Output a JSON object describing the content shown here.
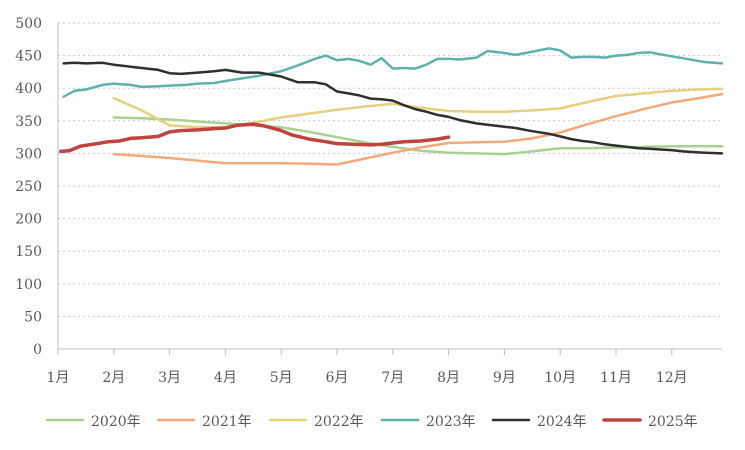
{
  "chart_data": {
    "type": "line",
    "title": "",
    "xlabel": "",
    "ylabel": "",
    "ylim": [
      0,
      500
    ],
    "y_ticks": [
      0,
      50,
      100,
      150,
      200,
      250,
      300,
      350,
      400,
      450,
      500
    ],
    "x_ticks": [
      "1月",
      "2月",
      "3月",
      "4月",
      "5月",
      "6月",
      "7月",
      "8月",
      "9月",
      "10月",
      "11月",
      "12月"
    ],
    "x_range": [
      1,
      12.9
    ],
    "grid": "horizontal-dotted",
    "legend": "bottom",
    "series": [
      {
        "name": "2020年",
        "color": "#a9d18e",
        "x": [
          2,
          2.5,
          3,
          3.5,
          4,
          4.5,
          5,
          5.5,
          6,
          6.5,
          7,
          7.5,
          8,
          8.5,
          9,
          9.5,
          10,
          10.5,
          11,
          11.5,
          12,
          12.5,
          12.9
        ],
        "values": [
          355,
          354,
          352,
          349,
          346,
          343,
          340,
          333,
          325,
          317,
          310,
          304,
          301,
          300,
          299,
          303,
          308,
          308,
          309,
          310,
          311,
          311,
          311
        ]
      },
      {
        "name": "2021年",
        "color": "#f4a97a",
        "x": [
          2,
          2.5,
          3,
          3.5,
          4,
          4.5,
          5,
          5.5,
          6,
          6.5,
          7,
          7.5,
          8,
          8.5,
          9,
          9.5,
          10,
          10.5,
          11,
          11.5,
          12,
          12.5,
          12.9
        ],
        "values": [
          299,
          296,
          293,
          289,
          285,
          285,
          285,
          284,
          283,
          292,
          301,
          309,
          316,
          317,
          318,
          323,
          332,
          345,
          357,
          368,
          378,
          385,
          391
        ]
      },
      {
        "name": "2022年",
        "color": "#e6cf7d",
        "x": [
          2,
          2.5,
          3,
          3.5,
          4,
          4.5,
          5,
          5.5,
          6,
          6.5,
          7,
          7.5,
          8,
          8.5,
          9,
          9.5,
          10,
          10.5,
          11,
          11.5,
          12,
          12.5,
          12.9
        ],
        "values": [
          385,
          366,
          343,
          340,
          340,
          347,
          355,
          361,
          367,
          372,
          376,
          370,
          365,
          364,
          364,
          366,
          369,
          379,
          388,
          392,
          396,
          398,
          399
        ]
      },
      {
        "name": "2023年",
        "color": "#5fb1ad",
        "x": [
          1.1,
          1.3,
          1.5,
          1.8,
          2,
          2.3,
          2.5,
          2.8,
          3,
          3.3,
          3.5,
          3.8,
          4,
          4.3,
          4.6,
          5,
          5.3,
          5.6,
          5.8,
          6,
          6.2,
          6.4,
          6.6,
          6.8,
          7,
          7.2,
          7.4,
          7.6,
          7.8,
          8,
          8.2,
          8.5,
          8.7,
          9,
          9.2,
          9.5,
          9.8,
          10,
          10.2,
          10.4,
          10.6,
          10.8,
          11,
          11.2,
          11.4,
          11.6,
          11.8,
          12,
          12.2,
          12.4,
          12.6,
          12.9
        ],
        "values": [
          387,
          396,
          398,
          405,
          407,
          405,
          402,
          403,
          404,
          405,
          407,
          408,
          411,
          415,
          419,
          426,
          435,
          445,
          450,
          443,
          445,
          442,
          436,
          446,
          430,
          431,
          430,
          436,
          445,
          445,
          444,
          447,
          457,
          454,
          451,
          456,
          461,
          458,
          447,
          448,
          448,
          447,
          450,
          451,
          454,
          455,
          452,
          449,
          446,
          443,
          440,
          438
        ]
      },
      {
        "name": "2024年",
        "color": "#2f2f2f",
        "x": [
          1.1,
          1.3,
          1.5,
          1.8,
          2,
          2.3,
          2.5,
          2.8,
          3,
          3.2,
          3.5,
          3.8,
          4,
          4.3,
          4.6,
          5,
          5.3,
          5.6,
          5.8,
          6,
          6.2,
          6.4,
          6.6,
          6.8,
          7,
          7.2,
          7.4,
          7.6,
          7.8,
          8,
          8.2,
          8.5,
          8.7,
          9,
          9.2,
          9.5,
          9.8,
          10,
          10.2,
          10.4,
          10.6,
          10.8,
          11,
          11.2,
          11.4,
          11.6,
          11.8,
          12,
          12.2,
          12.4,
          12.6,
          12.9
        ],
        "values": [
          438,
          439,
          438,
          439,
          436,
          433,
          431,
          428,
          423,
          422,
          424,
          426,
          428,
          424,
          424,
          418,
          409,
          409,
          406,
          395,
          392,
          389,
          384,
          383,
          381,
          374,
          368,
          364,
          359,
          356,
          351,
          346,
          344,
          341,
          339,
          334,
          330,
          326,
          322,
          319,
          317,
          314,
          312,
          310,
          308,
          307,
          306,
          305,
          303,
          302,
          301,
          300
        ]
      },
      {
        "name": "2025年",
        "color": "#c0433d",
        "x": [
          1.05,
          1.2,
          1.4,
          1.7,
          1.9,
          2.1,
          2.3,
          2.5,
          2.8,
          3,
          3.2,
          3.5,
          3.8,
          4,
          4.2,
          4.5,
          4.7,
          5,
          5.2,
          5.5,
          5.8,
          6,
          6.3,
          6.6,
          6.8,
          7,
          7.2,
          7.5,
          7.8,
          8
        ],
        "values": [
          303,
          304,
          311,
          315,
          318,
          319,
          323,
          324,
          326,
          333,
          335,
          336,
          338,
          339,
          343,
          345,
          342,
          335,
          328,
          322,
          318,
          315,
          314,
          313,
          314,
          316,
          318,
          319,
          322,
          325
        ]
      }
    ]
  }
}
